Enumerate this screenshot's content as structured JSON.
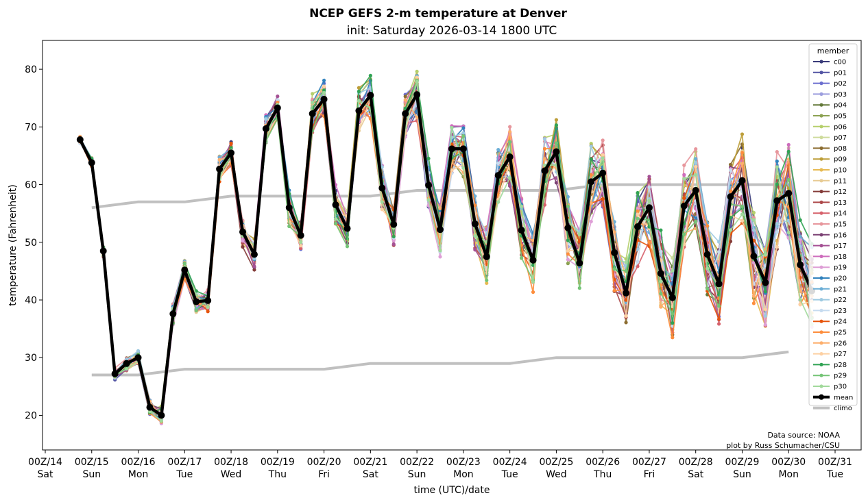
{
  "chart_data": {
    "type": "line",
    "title": "NCEP GEFS 2-m temperature at Denver",
    "subtitle": "init: Saturday 2026-03-14 1800 UTC",
    "xlabel": "time (UTC)/date",
    "ylabel": "temperature (Fahrenheit)",
    "x_unit": "hours since 00Z/14",
    "xlim": [
      0,
      408
    ],
    "ylim": [
      14,
      85
    ],
    "yticks": [
      20,
      30,
      40,
      50,
      60,
      70,
      80
    ],
    "xticks": [
      {
        "x": 0,
        "top": "00Z/14",
        "bottom": "Sat"
      },
      {
        "x": 24,
        "top": "00Z/15",
        "bottom": "Sun"
      },
      {
        "x": 48,
        "top": "00Z/16",
        "bottom": "Mon"
      },
      {
        "x": 72,
        "top": "00Z/17",
        "bottom": "Tue"
      },
      {
        "x": 96,
        "top": "00Z/18",
        "bottom": "Wed"
      },
      {
        "x": 120,
        "top": "00Z/19",
        "bottom": "Thu"
      },
      {
        "x": 144,
        "top": "00Z/20",
        "bottom": "Fri"
      },
      {
        "x": 168,
        "top": "00Z/21",
        "bottom": "Sat"
      },
      {
        "x": 192,
        "top": "00Z/22",
        "bottom": "Sun"
      },
      {
        "x": 216,
        "top": "00Z/23",
        "bottom": "Mon"
      },
      {
        "x": 240,
        "top": "00Z/24",
        "bottom": "Tue"
      },
      {
        "x": 264,
        "top": "00Z/25",
        "bottom": "Wed"
      },
      {
        "x": 288,
        "top": "00Z/26",
        "bottom": "Thu"
      },
      {
        "x": 312,
        "top": "00Z/27",
        "bottom": "Fri"
      },
      {
        "x": 336,
        "top": "00Z/28",
        "bottom": "Sat"
      },
      {
        "x": 360,
        "top": "00Z/29",
        "bottom": "Sun"
      },
      {
        "x": 384,
        "top": "00Z/30",
        "bottom": "Mon"
      },
      {
        "x": 408,
        "top": "00Z/31",
        "bottom": "Tue"
      }
    ],
    "legend": {
      "title": "member",
      "placement": "top-right",
      "members": [
        {
          "name": "c00",
          "color": "#393b79"
        },
        {
          "name": "p01",
          "color": "#5254a3"
        },
        {
          "name": "p02",
          "color": "#6b6ecf"
        },
        {
          "name": "p03",
          "color": "#9c9ede"
        },
        {
          "name": "p04",
          "color": "#637939"
        },
        {
          "name": "p05",
          "color": "#8ca252"
        },
        {
          "name": "p06",
          "color": "#b5cf6b"
        },
        {
          "name": "p07",
          "color": "#cedb9c"
        },
        {
          "name": "p08",
          "color": "#8c6d31"
        },
        {
          "name": "p09",
          "color": "#bd9e39"
        },
        {
          "name": "p10",
          "color": "#e7ba52"
        },
        {
          "name": "p11",
          "color": "#e7cb94"
        },
        {
          "name": "p12",
          "color": "#843c39"
        },
        {
          "name": "p13",
          "color": "#ad494a"
        },
        {
          "name": "p14",
          "color": "#d6616b"
        },
        {
          "name": "p15",
          "color": "#e7969c"
        },
        {
          "name": "p16",
          "color": "#7b4173"
        },
        {
          "name": "p17",
          "color": "#a55194"
        },
        {
          "name": "p18",
          "color": "#ce6dbd"
        },
        {
          "name": "p19",
          "color": "#de9ed6"
        },
        {
          "name": "p20",
          "color": "#3182bd"
        },
        {
          "name": "p21",
          "color": "#6baed6"
        },
        {
          "name": "p22",
          "color": "#9ecae1"
        },
        {
          "name": "p23",
          "color": "#c6dbef"
        },
        {
          "name": "p24",
          "color": "#e6550d"
        },
        {
          "name": "p25",
          "color": "#fd8d3c"
        },
        {
          "name": "p26",
          "color": "#fdae6b"
        },
        {
          "name": "p27",
          "color": "#fdd0a2"
        },
        {
          "name": "p28",
          "color": "#31a354"
        },
        {
          "name": "p29",
          "color": "#74c476"
        },
        {
          "name": "p30",
          "color": "#a1d99b"
        }
      ],
      "mean": {
        "name": "mean",
        "color": "#000000"
      },
      "climo": {
        "name": "climo",
        "color": "#c0c0c0"
      }
    },
    "mean_series": {
      "x": [
        18,
        24,
        30,
        36,
        42,
        48,
        54,
        60,
        66,
        72,
        78,
        84,
        90,
        96,
        102,
        108,
        114,
        120,
        126,
        132,
        138,
        144,
        150,
        156,
        162,
        168,
        174,
        180,
        186,
        192,
        198,
        204,
        210,
        216,
        222,
        228,
        234,
        240,
        246,
        252,
        258,
        264,
        270,
        276,
        282,
        288,
        294,
        300,
        306,
        312,
        318,
        324,
        330,
        336,
        342,
        348,
        354,
        360,
        366,
        372,
        378,
        384,
        390,
        396
      ],
      "values": [
        67.8,
        63.8,
        48.5,
        27.2,
        29.0,
        30.0,
        21.4,
        20.0,
        37.6,
        45.2,
        39.7,
        39.9,
        62.7,
        65.5,
        51.8,
        47.9,
        69.7,
        73.3,
        56.0,
        51.2,
        72.3,
        74.8,
        56.5,
        52.4,
        72.8,
        75.5,
        59.4,
        53.1,
        72.3,
        75.6,
        59.9,
        52.2,
        66.2,
        66.2,
        53.2,
        47.5,
        61.6,
        64.8,
        52.1,
        46.9,
        62.4,
        65.7,
        52.5,
        46.4,
        60.5,
        62.0,
        48.2,
        41.2,
        52.7,
        56.0,
        44.6,
        40.4,
        56.3,
        59.0,
        47.9,
        42.8,
        57.9,
        60.7,
        47.6,
        43.0,
        57.2,
        58.5,
        46.1,
        41.6
      ]
    },
    "climo_high": {
      "x": [
        24,
        48,
        72,
        96,
        120,
        144,
        168,
        192,
        216,
        240,
        264,
        288,
        312,
        336,
        360,
        384
      ],
      "values": [
        56,
        57,
        57,
        58,
        58,
        58,
        58,
        59,
        59,
        59,
        59,
        60,
        60,
        60,
        60,
        60
      ]
    },
    "climo_low": {
      "x": [
        24,
        48,
        72,
        96,
        120,
        144,
        168,
        192,
        216,
        240,
        264,
        288,
        312,
        336,
        360,
        384
      ],
      "values": [
        27,
        27,
        28,
        28,
        28,
        28,
        29,
        29,
        29,
        29,
        30,
        30,
        30,
        30,
        30,
        31
      ]
    }
  },
  "credits": {
    "line1": "Data source: NOAA",
    "line2": "plot by Russ Schumacher/CSU"
  }
}
